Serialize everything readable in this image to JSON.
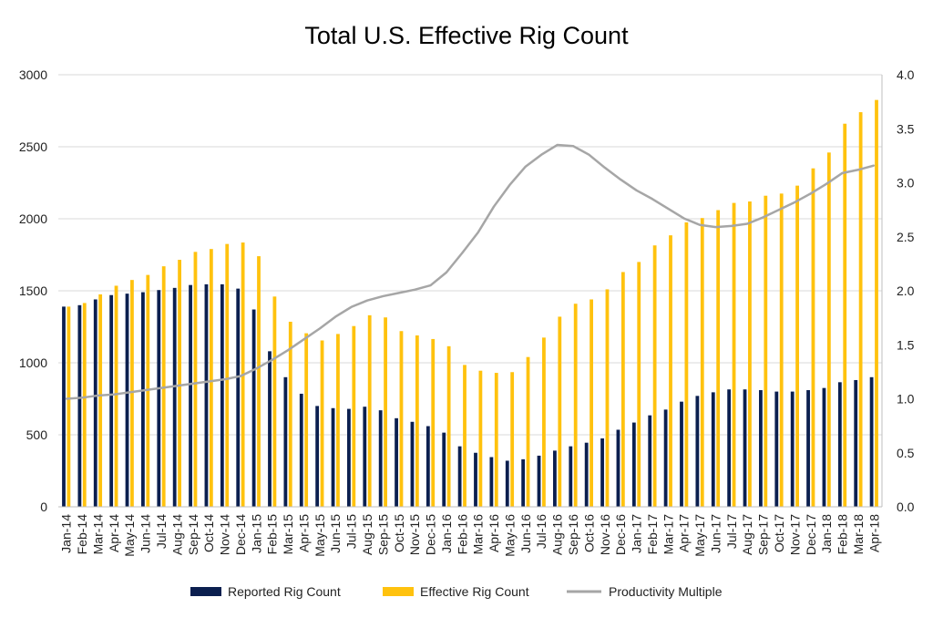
{
  "colors": {
    "reported": "#0B1F4F",
    "effective": "#FFC20E",
    "productivity": "#A6A6A6",
    "grid": "#D9D9D9",
    "axis": "#BFBFBF"
  },
  "chart_data": {
    "type": "bar",
    "title": "Total U.S. Effective Rig Count",
    "xlabel": "",
    "ylabel": "",
    "ylim": [
      0,
      3000
    ],
    "y2lim": [
      0.0,
      4.0
    ],
    "y_ticks": [
      "0",
      "500",
      "1000",
      "1500",
      "2000",
      "2500",
      "3000"
    ],
    "y2_ticks": [
      "0.0",
      "0.5",
      "1.0",
      "1.5",
      "2.0",
      "2.5",
      "3.0",
      "3.5",
      "4.0"
    ],
    "grid": true,
    "legend_position": "bottom",
    "categories": [
      "Jan-14",
      "Feb-14",
      "Mar-14",
      "Apr-14",
      "May-14",
      "Jun-14",
      "Jul-14",
      "Aug-14",
      "Sep-14",
      "Oct-14",
      "Nov-14",
      "Dec-14",
      "Jan-15",
      "Feb-15",
      "Mar-15",
      "Apr-15",
      "May-15",
      "Jun-15",
      "Jul-15",
      "Aug-15",
      "Sep-15",
      "Oct-15",
      "Nov-15",
      "Dec-15",
      "Jan-16",
      "Feb-16",
      "Mar-16",
      "Apr-16",
      "May-16",
      "Jun-16",
      "Jul-16",
      "Aug-16",
      "Sep-16",
      "Oct-16",
      "Nov-16",
      "Dec-16",
      "Jan-17",
      "Feb-17",
      "Mar-17",
      "Apr-17",
      "May-17",
      "Jun-17",
      "Jul-17",
      "Aug-17",
      "Sep-17",
      "Oct-17",
      "Nov-17",
      "Dec-17",
      "Jan-18",
      "Feb-18",
      "Mar-18",
      "Apr-18"
    ],
    "series": [
      {
        "name": "Reported Rig Count",
        "type": "bar",
        "axis": "left",
        "values": [
          1390,
          1400,
          1440,
          1470,
          1480,
          1490,
          1505,
          1520,
          1540,
          1545,
          1545,
          1515,
          1370,
          1080,
          900,
          785,
          700,
          685,
          680,
          695,
          670,
          615,
          590,
          560,
          515,
          420,
          375,
          345,
          320,
          330,
          355,
          390,
          420,
          445,
          475,
          535,
          585,
          635,
          675,
          730,
          770,
          795,
          815,
          815,
          810,
          800,
          800,
          810,
          825,
          865,
          880,
          900
        ]
      },
      {
        "name": "Effective Rig Count",
        "type": "bar",
        "axis": "left",
        "values": [
          1390,
          1415,
          1475,
          1535,
          1575,
          1610,
          1670,
          1715,
          1770,
          1790,
          1825,
          1835,
          1740,
          1460,
          1285,
          1205,
          1155,
          1200,
          1255,
          1330,
          1315,
          1220,
          1190,
          1165,
          1115,
          985,
          945,
          930,
          935,
          1040,
          1175,
          1320,
          1410,
          1440,
          1510,
          1630,
          1700,
          1815,
          1885,
          1975,
          2005,
          2060,
          2110,
          2120,
          2160,
          2175,
          2230,
          2350,
          2460,
          2660,
          2740,
          2825
        ]
      },
      {
        "name": "Productivity Multiple",
        "type": "line",
        "axis": "right",
        "values": [
          1.0,
          1.01,
          1.03,
          1.04,
          1.06,
          1.08,
          1.1,
          1.12,
          1.14,
          1.16,
          1.18,
          1.21,
          1.28,
          1.36,
          1.45,
          1.55,
          1.65,
          1.76,
          1.85,
          1.91,
          1.95,
          1.98,
          2.01,
          2.05,
          2.17,
          2.35,
          2.54,
          2.78,
          2.98,
          3.15,
          3.26,
          3.35,
          3.34,
          3.26,
          3.14,
          3.03,
          2.93,
          2.85,
          2.76,
          2.67,
          2.61,
          2.59,
          2.6,
          2.62,
          2.68,
          2.75,
          2.82,
          2.9,
          2.99,
          3.09,
          3.12,
          3.16
        ]
      }
    ]
  }
}
